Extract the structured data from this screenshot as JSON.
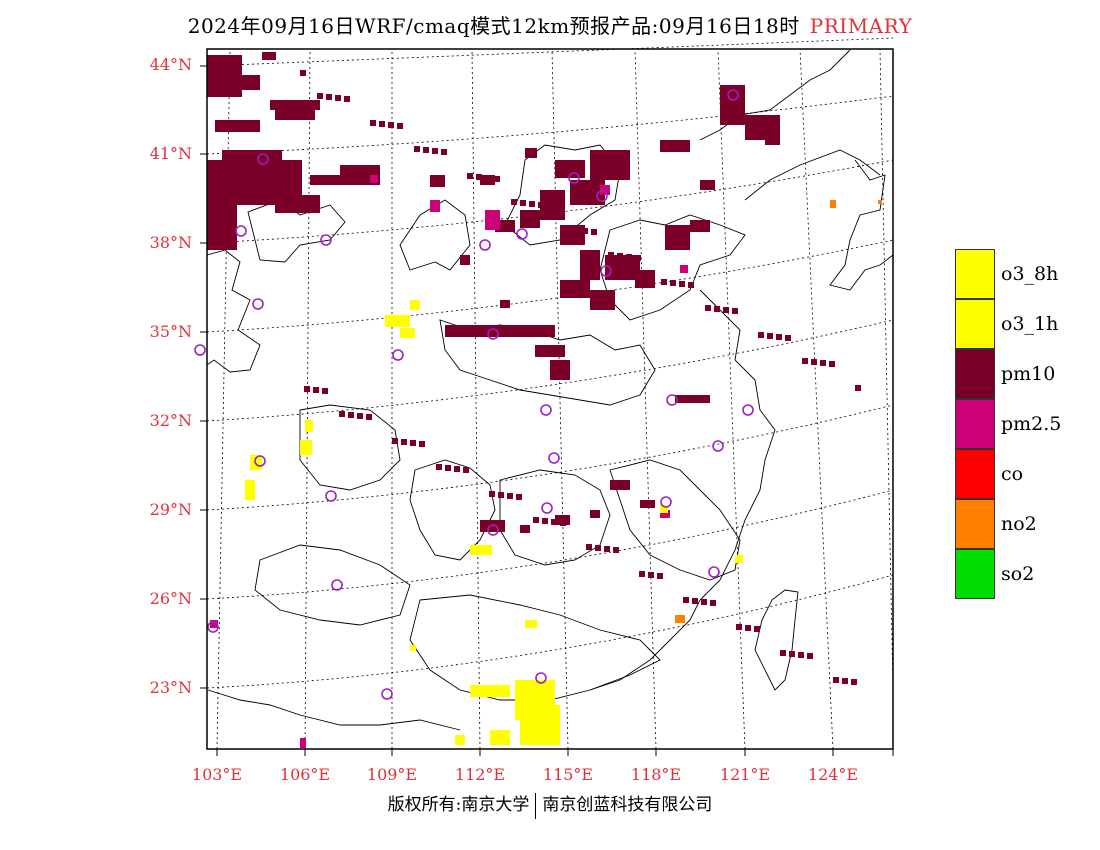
{
  "header": {
    "title": "2024年09月16日WRF/cmaq模式12km预报产品:09月16日18时",
    "tag": "PRIMARY"
  },
  "map": {
    "lat_labels": [
      "44°N",
      "41°N",
      "38°N",
      "35°N",
      "32°N",
      "29°N",
      "26°N",
      "23°N"
    ],
    "lon_labels": [
      "103°E",
      "106°E",
      "109°E",
      "112°E",
      "115°E",
      "118°E",
      "121°E",
      "124°E"
    ]
  },
  "legend": {
    "items": [
      {
        "label": "o3_8h",
        "color": "#ffff00"
      },
      {
        "label": "o3_1h",
        "color": "#ffff00"
      },
      {
        "label": "pm10",
        "color": "#7a0028"
      },
      {
        "label": "pm2.5",
        "color": "#cc0077"
      },
      {
        "label": "co",
        "color": "#ff0000"
      },
      {
        "label": "no2",
        "color": "#ff7f00"
      },
      {
        "label": "so2",
        "color": "#00dd00"
      }
    ]
  },
  "footer": {
    "left": "版权所有:南京大学",
    "right": "南京创蓝科技有限公司"
  }
}
